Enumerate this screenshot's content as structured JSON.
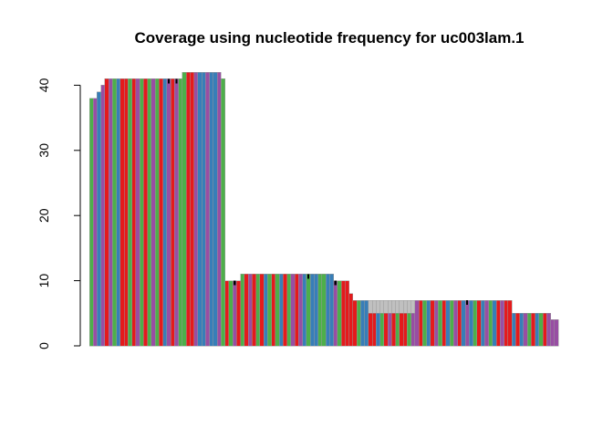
{
  "chart_data": {
    "type": "bar",
    "title": "Coverage using nucleotide frequency for uc003lam.1",
    "xlabel": "",
    "ylabel": "",
    "ylim": [
      0,
      42
    ],
    "yticks": [
      0,
      10,
      20,
      30,
      40
    ],
    "ytick_labels": [
      "0",
      "10",
      "20",
      "30",
      "40"
    ],
    "grid": false,
    "legend": "none",
    "nucleotide_colors": {
      "A": "#4daf4a",
      "C": "#e41a1c",
      "G": "#984ea3",
      "T": "#377eb8",
      "N": "#c0c0c0",
      "outline": "#999999",
      "mismatch_mark": "#000000"
    },
    "positions": [
      {
        "base": "A",
        "value": 38
      },
      {
        "base": "G",
        "value": 38
      },
      {
        "base": "T",
        "value": 39
      },
      {
        "base": "G",
        "value": 40
      },
      {
        "base": "C",
        "value": 41
      },
      {
        "base": "G",
        "value": 41
      },
      {
        "base": "A",
        "value": 41
      },
      {
        "base": "T",
        "value": 41
      },
      {
        "base": "C",
        "value": 41
      },
      {
        "base": "C",
        "value": 41
      },
      {
        "base": "A",
        "value": 41
      },
      {
        "base": "C",
        "value": 41
      },
      {
        "base": "G",
        "value": 41
      },
      {
        "base": "A",
        "value": 41
      },
      {
        "base": "C",
        "value": 41
      },
      {
        "base": "A",
        "value": 41
      },
      {
        "base": "G",
        "value": 41
      },
      {
        "base": "A",
        "value": 41
      },
      {
        "base": "C",
        "value": 41
      },
      {
        "base": "T",
        "value": 41
      },
      {
        "base": "G",
        "value": 41,
        "mark": true
      },
      {
        "base": "C",
        "value": 41
      },
      {
        "base": "G",
        "value": 41,
        "mark": true
      },
      {
        "base": "A",
        "value": 41
      },
      {
        "base": "A",
        "value": 42
      },
      {
        "base": "C",
        "value": 42
      },
      {
        "base": "C",
        "value": 42
      },
      {
        "base": "G",
        "value": 42
      },
      {
        "base": "T",
        "value": 42
      },
      {
        "base": "T",
        "value": 42
      },
      {
        "base": "G",
        "value": 42
      },
      {
        "base": "T",
        "value": 42
      },
      {
        "base": "T",
        "value": 42
      },
      {
        "base": "G",
        "value": 42
      },
      {
        "base": "A",
        "value": 41
      },
      {
        "base": "C",
        "value": 10
      },
      {
        "base": "A",
        "value": 10
      },
      {
        "base": "G",
        "value": 10,
        "mark": true
      },
      {
        "base": "C",
        "value": 10
      },
      {
        "base": "A",
        "value": 11
      },
      {
        "base": "C",
        "value": 11
      },
      {
        "base": "G",
        "value": 11
      },
      {
        "base": "C",
        "value": 11
      },
      {
        "base": "A",
        "value": 11
      },
      {
        "base": "C",
        "value": 11
      },
      {
        "base": "T",
        "value": 11
      },
      {
        "base": "A",
        "value": 11
      },
      {
        "base": "C",
        "value": 11
      },
      {
        "base": "A",
        "value": 11
      },
      {
        "base": "T",
        "value": 11
      },
      {
        "base": "C",
        "value": 11
      },
      {
        "base": "A",
        "value": 11
      },
      {
        "base": "G",
        "value": 11
      },
      {
        "base": "C",
        "value": 11
      },
      {
        "base": "G",
        "value": 11
      },
      {
        "base": "T",
        "value": 11
      },
      {
        "base": "A",
        "value": 11,
        "mark": true
      },
      {
        "base": "T",
        "value": 11
      },
      {
        "base": "T",
        "value": 11
      },
      {
        "base": "A",
        "value": 11
      },
      {
        "base": "A",
        "value": 11
      },
      {
        "base": "T",
        "value": 11
      },
      {
        "base": "T",
        "value": 11
      },
      {
        "base": "G",
        "value": 10,
        "mark": true
      },
      {
        "base": "A",
        "value": 10
      },
      {
        "base": "C",
        "value": 10
      },
      {
        "base": "C",
        "value": 10
      },
      {
        "base": "C",
        "value": 8
      },
      {
        "base": "C",
        "value": 7
      },
      {
        "base": "A",
        "value": 7
      },
      {
        "base": "T",
        "value": 7
      },
      {
        "base": "T",
        "value": 7
      },
      {
        "base": "C",
        "value": 5,
        "ambiguous": 7
      },
      {
        "base": "C",
        "value": 5,
        "ambiguous": 7
      },
      {
        "base": "T",
        "value": 5,
        "ambiguous": 7
      },
      {
        "base": "A",
        "value": 5,
        "ambiguous": 7
      },
      {
        "base": "C",
        "value": 5,
        "ambiguous": 7
      },
      {
        "base": "G",
        "value": 5,
        "ambiguous": 7
      },
      {
        "base": "C",
        "value": 5,
        "ambiguous": 7
      },
      {
        "base": "A",
        "value": 5,
        "ambiguous": 7
      },
      {
        "base": "C",
        "value": 5,
        "ambiguous": 7
      },
      {
        "base": "C",
        "value": 5,
        "ambiguous": 7
      },
      {
        "base": "A",
        "value": 5,
        "ambiguous": 7
      },
      {
        "base": "G",
        "value": 5,
        "ambiguous": 7
      },
      {
        "base": "G",
        "value": 7
      },
      {
        "base": "C",
        "value": 7
      },
      {
        "base": "A",
        "value": 7
      },
      {
        "base": "T",
        "value": 7
      },
      {
        "base": "C",
        "value": 7
      },
      {
        "base": "G",
        "value": 7
      },
      {
        "base": "A",
        "value": 7
      },
      {
        "base": "C",
        "value": 7
      },
      {
        "base": "T",
        "value": 7
      },
      {
        "base": "A",
        "value": 7
      },
      {
        "base": "G",
        "value": 7
      },
      {
        "base": "C",
        "value": 7
      },
      {
        "base": "T",
        "value": 7
      },
      {
        "base": "G",
        "value": 7,
        "mark": true
      },
      {
        "base": "T",
        "value": 7
      },
      {
        "base": "A",
        "value": 7
      },
      {
        "base": "C",
        "value": 7
      },
      {
        "base": "T",
        "value": 7
      },
      {
        "base": "G",
        "value": 7
      },
      {
        "base": "A",
        "value": 7
      },
      {
        "base": "T",
        "value": 7
      },
      {
        "base": "C",
        "value": 7
      },
      {
        "base": "G",
        "value": 7
      },
      {
        "base": "C",
        "value": 7
      },
      {
        "base": "C",
        "value": 7
      },
      {
        "base": "T",
        "value": 5
      },
      {
        "base": "C",
        "value": 5
      },
      {
        "base": "T",
        "value": 5
      },
      {
        "base": "G",
        "value": 5
      },
      {
        "base": "A",
        "value": 5
      },
      {
        "base": "C",
        "value": 5
      },
      {
        "base": "T",
        "value": 5
      },
      {
        "base": "A",
        "value": 5
      },
      {
        "base": "C",
        "value": 5
      },
      {
        "base": "G",
        "value": 5
      },
      {
        "base": "G",
        "value": 4
      },
      {
        "base": "G",
        "value": 4
      }
    ]
  }
}
